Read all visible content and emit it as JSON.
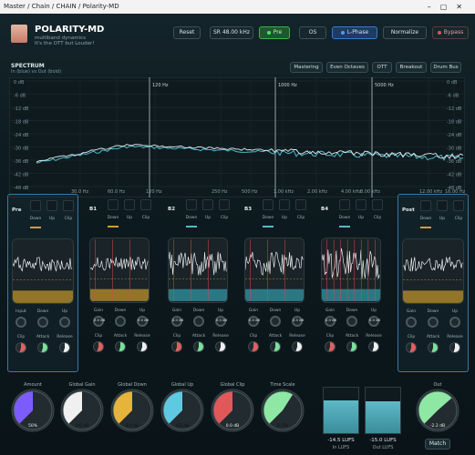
{
  "window": {
    "title": "Master / Chain / CHAIN / Polarity-MD"
  },
  "header": {
    "brand": "POLARITY-MD",
    "tagline1": "multiband dynamics",
    "tagline2": "It's the OTT but Louder!",
    "buttons": [
      {
        "label": "Reset",
        "state": "normal"
      },
      {
        "label": "SR 48.00 kHz",
        "state": "normal"
      },
      {
        "label": "Pre",
        "state": "green"
      },
      {
        "label": "OS",
        "state": "normal"
      },
      {
        "label": "L-Phase",
        "state": "blue"
      },
      {
        "label": "Normalize",
        "state": "normal"
      },
      {
        "label": "Bypass",
        "state": "bypass"
      }
    ]
  },
  "spectrum": {
    "title": "SPECTRUM",
    "subtitle": "In (blue) vs Out (bold)",
    "presets": [
      "Mastering",
      "Even Octaves",
      "OTT",
      "Breakout",
      "Drum Bus"
    ],
    "db_labels": [
      "0 dB",
      "-6 dB",
      "-12 dB",
      "-18 dB",
      "-24 dB",
      "-30 dB",
      "-36 dB",
      "-42 dB",
      "-48 dB"
    ],
    "db_labels_right": [
      "0 dB",
      "-6 dB",
      "-12 dB",
      "-18 dB",
      "-24 dB",
      "-30 dB",
      "-36 dB",
      "-42 dB",
      "-48 dB"
    ],
    "crossovers": [
      "120 Hz",
      "1000 Hz",
      "5000 Hz"
    ],
    "freq_labels": [
      "30.0 Hz",
      "60.0 Hz",
      "120 Hz",
      "250 Hz",
      "500 Hz",
      "1.00 kHz",
      "2.00 kHz",
      "4.00 kHz",
      "8.00 kHz",
      "12.00 kHz",
      "16.00 Hz"
    ]
  },
  "bands": [
    {
      "name": "Pre",
      "sq": [
        "Down",
        "Up",
        "Clip"
      ],
      "knobs": [
        "Input",
        "Down",
        "Up"
      ],
      "knobs2": [
        "Clip",
        "Attack",
        "Release"
      ],
      "values": [
        "",
        "",
        ""
      ],
      "accent": "#d0a030"
    },
    {
      "name": "B1",
      "sq": [
        "Down",
        "Up",
        "Clip"
      ],
      "knobs": [
        "Gain",
        "Down",
        "Up"
      ],
      "knobs2": [
        "Clip",
        "Attack",
        "Release"
      ],
      "values": [
        "0.0 dB",
        "",
        "0.0 dB"
      ],
      "accent": "#d0a030"
    },
    {
      "name": "B2",
      "sq": [
        "Down",
        "Up",
        "Clip"
      ],
      "knobs": [
        "Gain",
        "Down",
        "Up"
      ],
      "knobs2": [
        "Clip",
        "Attack",
        "Release"
      ],
      "values": [
        "0.0 dB",
        "",
        "0.0 dB"
      ],
      "accent": "#5ab8c8"
    },
    {
      "name": "B3",
      "sq": [
        "Down",
        "Up",
        "Clip"
      ],
      "knobs": [
        "Gain",
        "Down",
        "Up"
      ],
      "knobs2": [
        "Clip",
        "Attack",
        "Release"
      ],
      "values": [
        "0.0 dB",
        "",
        "0.0 dB"
      ],
      "accent": "#5ab8c8"
    },
    {
      "name": "B4",
      "sq": [
        "Down",
        "Up",
        "Clip"
      ],
      "knobs": [
        "Gain",
        "Down",
        "Up"
      ],
      "knobs2": [
        "Clip",
        "Attack",
        "Release"
      ],
      "values": [
        "0.0 dB",
        "",
        "0.0 dB"
      ],
      "accent": "#5ab8c8"
    },
    {
      "name": "Post",
      "sq": [
        "Down",
        "Up",
        "Clip"
      ],
      "knobs": [
        "Gain",
        "Down",
        "Up"
      ],
      "knobs2": [
        "Clip",
        "Attack",
        "Release"
      ],
      "values": [
        "",
        "",
        ""
      ],
      "accent": "#d0a030"
    }
  ],
  "macros": [
    {
      "label": "Amount",
      "value": "50%",
      "color": "#7c5cff"
    },
    {
      "label": "Global Gain",
      "value": "0.0 dB",
      "color": "#f0f0f0"
    },
    {
      "label": "Global Down",
      "value": "0.0 dB",
      "color": "#e6b43a"
    },
    {
      "label": "Global Up",
      "value": "0.0 dB",
      "color": "#5ec9e0"
    },
    {
      "label": "Global Clip",
      "value": "0.0 dB",
      "color": "#e05858"
    },
    {
      "label": "Time Scale",
      "value": "0.75x",
      "color": "#8ee8a4"
    }
  ],
  "meters": [
    {
      "value": "-14.5 LUFS",
      "label": "In LUFS",
      "fill": 0.72
    },
    {
      "value": "-15.0 LUFS",
      "label": "Out LUFS",
      "fill": 0.7
    }
  ],
  "output": {
    "label": "Out",
    "value": "-2.2 dB",
    "color": "#8ee8a4",
    "match": "Match"
  }
}
